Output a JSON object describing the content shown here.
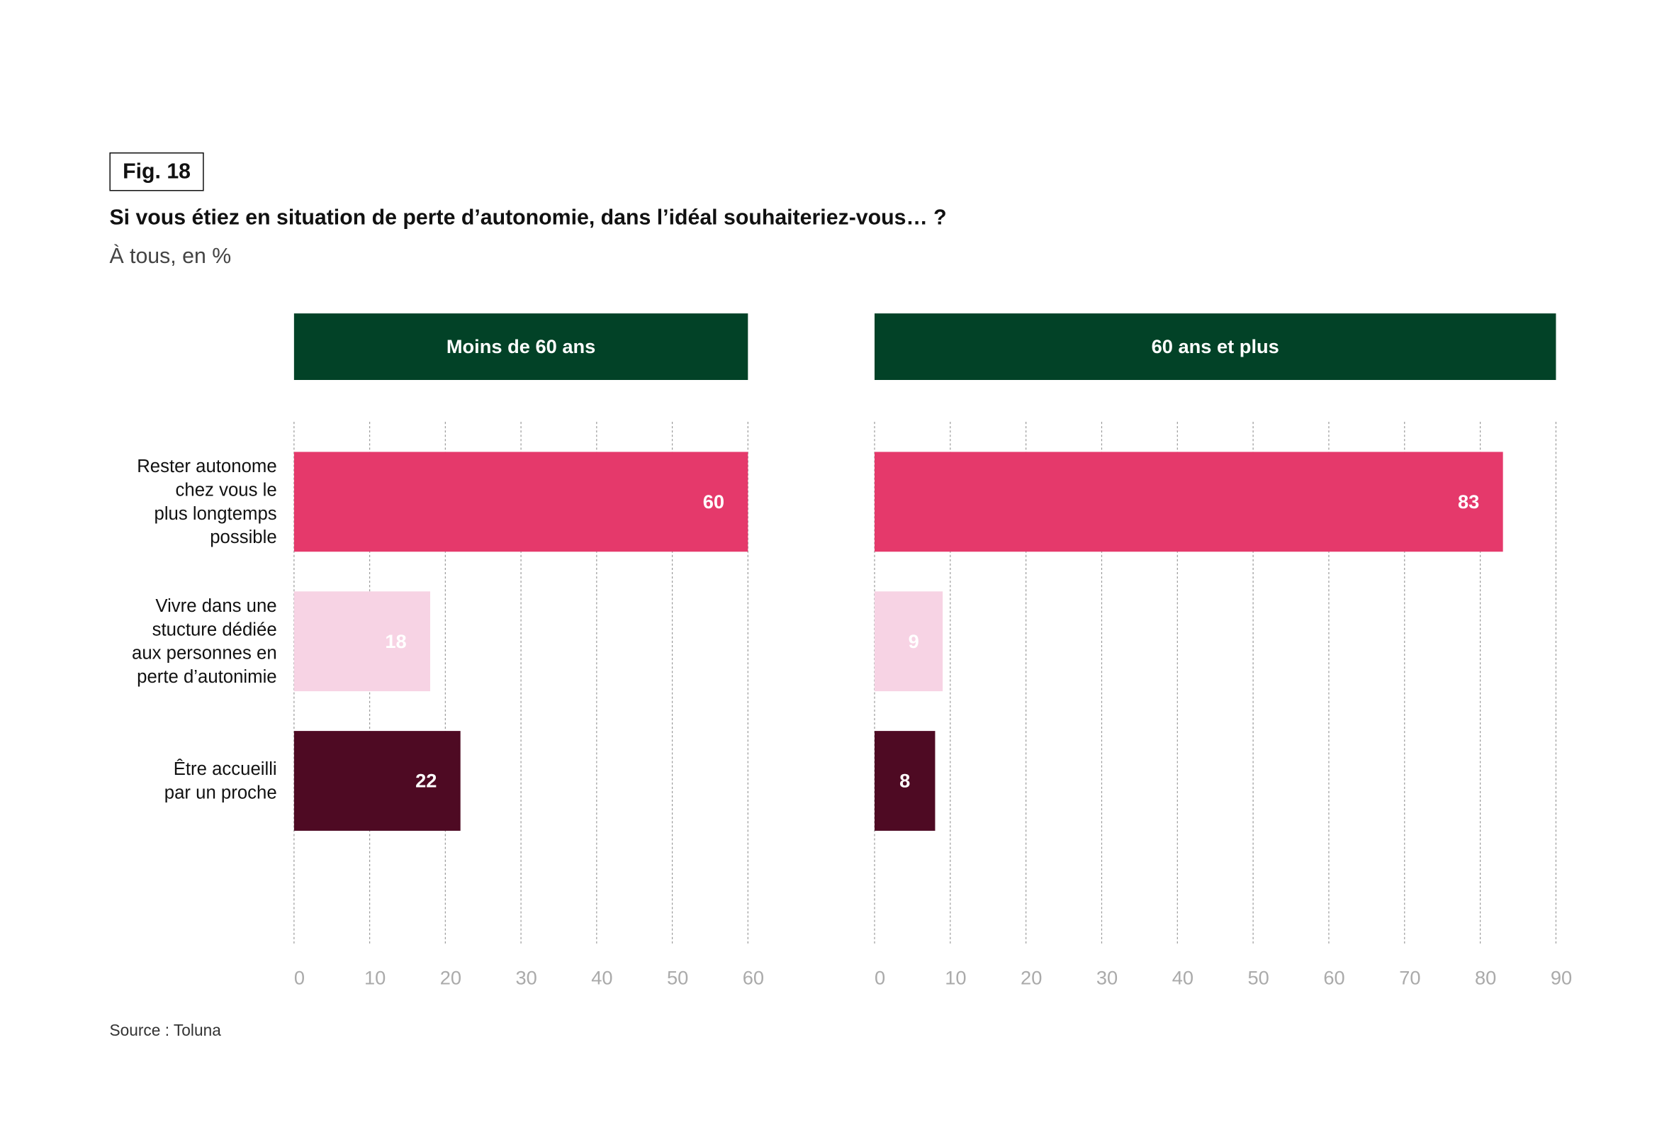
{
  "figure_label": "Fig. 18",
  "source": "Source : Toluna",
  "colors": {
    "header": "#024227",
    "series": [
      "#E5396B",
      "#F7D3E4",
      "#4E0A23"
    ]
  },
  "chart_data": [
    {
      "type": "bar",
      "orientation": "horizontal",
      "title": "Si vous étiez en situation de perte d’autonomie, dans l’idéal souhaiteriez-vous… ?",
      "subtitle": "À tous, en %",
      "panel": "Moins de 60 ans",
      "categories": [
        "Rester autonome chez vous le plus longtemps possible",
        "Vivre dans une stucture dédiée aux personnes en perte d’autonimie",
        "Être accueilli par un proche"
      ],
      "values": [
        60,
        18,
        22
      ],
      "xlim": [
        0,
        60
      ],
      "ticks": [
        "0",
        "10",
        "20",
        "30",
        "40",
        "50",
        "60"
      ],
      "grid": true
    },
    {
      "type": "bar",
      "orientation": "horizontal",
      "panel": "60 ans et plus",
      "categories": [
        "Rester autonome chez vous le plus longtemps possible",
        "Vivre dans une stucture dédiée aux personnes en perte d’autonimie",
        "Être accueilli par un proche"
      ],
      "values": [
        83,
        9,
        8
      ],
      "xlim": [
        0,
        90
      ],
      "ticks": [
        "0",
        "10",
        "20",
        "30",
        "40",
        "50",
        "60",
        "70",
        "80",
        "90"
      ],
      "grid": true
    }
  ],
  "category_lines": [
    [
      "Rester autonome",
      "chez vous le",
      "plus longtemps",
      "possible"
    ],
    [
      "Vivre dans une",
      "stucture dédiée",
      "aux personnes en",
      "perte d’autonimie"
    ],
    [
      "Être accueilli",
      "par un proche"
    ]
  ]
}
